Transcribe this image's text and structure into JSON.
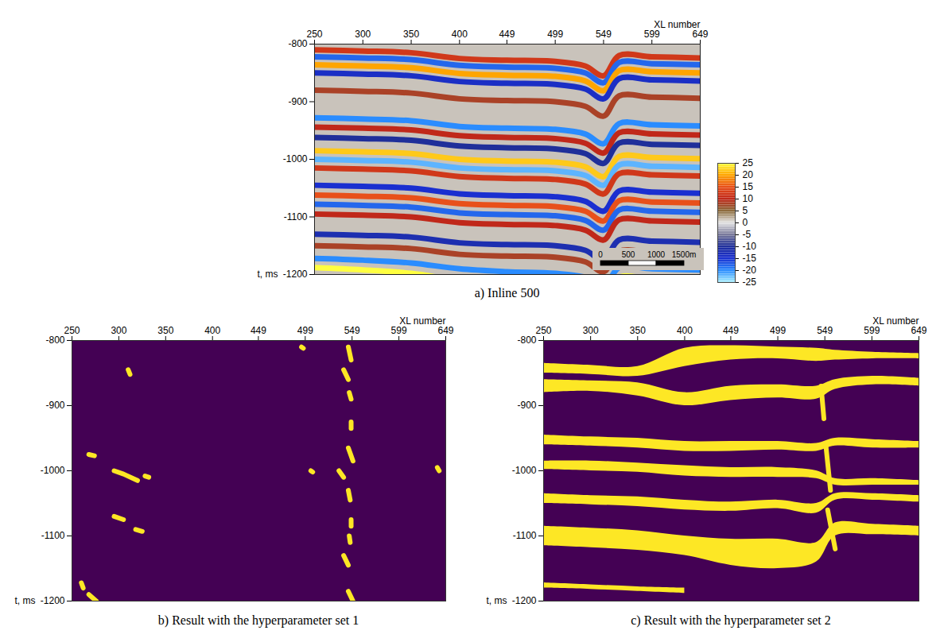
{
  "chart_data": [
    {
      "type": "heatmap",
      "title": "a) Inline 500",
      "x_label": "XL number",
      "y_label": "t, ms",
      "xlim": [
        250,
        649
      ],
      "xticks": [
        250,
        300,
        350,
        400,
        449,
        499,
        549,
        599,
        649
      ],
      "ylim": [
        -1200,
        -800
      ],
      "yticks": [
        -800,
        -900,
        -1000,
        -1100,
        -1200
      ],
      "reflectors": {
        "x": [
          250,
          300,
          350,
          400,
          449,
          499,
          530,
          549,
          565,
          599,
          649
        ],
        "series": [
          {
            "amplitude": 12,
            "t": [
              -810,
              -812,
              -815,
              -825,
              -828,
              -830,
              -838,
              -855,
              -820,
              -822,
              -824
            ]
          },
          {
            "amplitude": -18,
            "t": [
              -822,
              -824,
              -827,
              -837,
              -840,
              -842,
              -850,
              -867,
              -832,
              -834,
              -836
            ]
          },
          {
            "amplitude": 20,
            "t": [
              -836,
              -838,
              -841,
              -851,
              -854,
              -856,
              -864,
              -881,
              -846,
              -848,
              -850
            ]
          },
          {
            "amplitude": -14,
            "t": [
              -850,
              -852,
              -855,
              -865,
              -868,
              -870,
              -878,
              -895,
              -860,
              -862,
              -864
            ]
          },
          {
            "amplitude": 8,
            "t": [
              -880,
              -882,
              -885,
              -895,
              -898,
              -900,
              -908,
              -925,
              -890,
              -892,
              -894
            ]
          },
          {
            "amplitude": -20,
            "t": [
              -928,
              -930,
              -933,
              -943,
              -946,
              -948,
              -956,
              -973,
              -938,
              -940,
              -942
            ]
          },
          {
            "amplitude": 10,
            "t": [
              -944,
              -946,
              -949,
              -959,
              -962,
              -964,
              -972,
              -989,
              -954,
              -956,
              -958
            ]
          },
          {
            "amplitude": -10,
            "t": [
              -962,
              -964,
              -967,
              -977,
              -980,
              -982,
              -990,
              -1007,
              -972,
              -974,
              -976
            ]
          },
          {
            "amplitude": 22,
            "t": [
              -985,
              -987,
              -990,
              -1000,
              -1003,
              -1005,
              -1013,
              -1030,
              -995,
              -997,
              -999
            ]
          },
          {
            "amplitude": -22,
            "t": [
              -1000,
              -1002,
              -1005,
              -1015,
              -1018,
              -1020,
              -1028,
              -1045,
              -1010,
              -1012,
              -1014
            ]
          },
          {
            "amplitude": 12,
            "t": [
              -1015,
              -1017,
              -1020,
              -1030,
              -1033,
              -1035,
              -1043,
              -1060,
              -1025,
              -1027,
              -1029
            ]
          },
          {
            "amplitude": -15,
            "t": [
              -1045,
              -1047,
              -1050,
              -1060,
              -1063,
              -1065,
              -1073,
              -1090,
              -1055,
              -1057,
              -1059
            ]
          },
          {
            "amplitude": 15,
            "t": [
              -1062,
              -1064,
              -1067,
              -1077,
              -1080,
              -1082,
              -1090,
              -1107,
              -1072,
              -1074,
              -1076
            ]
          },
          {
            "amplitude": -18,
            "t": [
              -1078,
              -1080,
              -1083,
              -1093,
              -1096,
              -1098,
              -1106,
              -1123,
              -1088,
              -1090,
              -1092
            ]
          },
          {
            "amplitude": 10,
            "t": [
              -1095,
              -1097,
              -1100,
              -1110,
              -1113,
              -1115,
              -1123,
              -1140,
              -1105,
              -1107,
              -1109
            ]
          },
          {
            "amplitude": -12,
            "t": [
              -1130,
              -1132,
              -1135,
              -1145,
              -1148,
              -1150,
              -1158,
              -1175,
              -1140,
              -1142,
              -1144
            ]
          },
          {
            "amplitude": 8,
            "t": [
              -1150,
              -1152,
              -1155,
              -1165,
              -1168,
              -1170,
              -1178,
              -1195,
              -1160,
              -1162,
              -1164
            ]
          },
          {
            "amplitude": -20,
            "t": [
              -1172,
              -1175,
              -1180,
              -1190,
              -1195,
              -1198,
              -1205,
              -1222,
              -1188,
              -1190,
              -1192
            ]
          },
          {
            "amplitude": 25,
            "t": [
              -1188,
              -1192,
              -1198,
              -1210,
              -1215,
              -1218,
              -1225,
              -1240,
              -1205,
              -1208,
              -1210
            ]
          }
        ]
      },
      "colorbar": {
        "range": [
          -25,
          25
        ],
        "ticks": [
          25,
          20,
          15,
          10,
          5,
          0,
          -5,
          -10,
          -15,
          -20,
          -25
        ]
      },
      "scale_bar": {
        "ticks": [
          0,
          500,
          1000,
          {
            "value": 1500,
            "label": "1500m"
          }
        ]
      }
    },
    {
      "type": "mask",
      "title": "b) Result with the hyperparameter set 1",
      "x_label": "XL number",
      "y_label": "t, ms",
      "xlim": [
        250,
        649
      ],
      "xticks": [
        250,
        300,
        350,
        400,
        449,
        499,
        549,
        599,
        649
      ],
      "ylim": [
        -1200,
        -800
      ],
      "yticks": [
        -800,
        -900,
        -1000,
        -1100,
        -1200
      ],
      "color": "#fde725",
      "blobs": [
        [
          [
            545,
            -810
          ],
          [
            548,
            -830
          ]
        ],
        [
          [
            540,
            -845
          ],
          [
            545,
            -860
          ]
        ],
        [
          [
            546,
            -880
          ],
          [
            548,
            -890
          ]
        ],
        [
          [
            548,
            -925
          ],
          [
            548,
            -935
          ]
        ],
        [
          [
            545,
            -965
          ],
          [
            550,
            -985
          ]
        ],
        [
          [
            535,
            -1000
          ],
          [
            540,
            -1010
          ]
        ],
        [
          [
            545,
            -1030
          ],
          [
            547,
            -1045
          ]
        ],
        [
          [
            548,
            -1075
          ],
          [
            548,
            -1085
          ]
        ],
        [
          [
            546,
            -1100
          ],
          [
            547,
            -1110
          ]
        ],
        [
          [
            540,
            -1130
          ],
          [
            545,
            -1145
          ]
        ],
        [
          [
            545,
            -1185
          ],
          [
            550,
            -1200
          ]
        ],
        [
          [
            310,
            -845
          ],
          [
            312,
            -852
          ]
        ],
        [
          [
            268,
            -975
          ],
          [
            274,
            -977
          ]
        ],
        [
          [
            295,
            -1000
          ],
          [
            305,
            -1005
          ],
          [
            320,
            -1015
          ]
        ],
        [
          [
            328,
            -1008
          ],
          [
            332,
            -1010
          ]
        ],
        [
          [
            295,
            -1070
          ],
          [
            305,
            -1075
          ]
        ],
        [
          [
            318,
            -1090
          ],
          [
            325,
            -1093
          ]
        ],
        [
          [
            260,
            -1172
          ],
          [
            262,
            -1180
          ]
        ],
        [
          [
            268,
            -1190
          ],
          [
            276,
            -1200
          ]
        ],
        [
          [
            505,
            -1000
          ],
          [
            507,
            -1002
          ]
        ],
        [
          [
            495,
            -810
          ],
          [
            497,
            -812
          ]
        ],
        [
          [
            640,
            -995
          ],
          [
            642,
            -1000
          ]
        ]
      ]
    },
    {
      "type": "mask",
      "title": "c) Result with the hyperparameter set 2",
      "x_label": "XL number",
      "y_label": "t, ms",
      "xlim": [
        250,
        649
      ],
      "xticks": [
        250,
        300,
        350,
        400,
        449,
        499,
        549,
        599,
        649
      ],
      "ylim": [
        -1200,
        -800
      ],
      "yticks": [
        -800,
        -900,
        -1000,
        -1100,
        -1200
      ],
      "color": "#fde725",
      "bands": [
        {
          "xl": [
            250,
            300,
            350,
            400,
            449,
            499,
            540,
            560,
            600,
            649
          ],
          "t_top": [
            -835,
            -838,
            -840,
            -812,
            -808,
            -810,
            -812,
            -815,
            -818,
            -820
          ],
          "t_bottom": [
            -850,
            -852,
            -855,
            -840,
            -830,
            -828,
            -832,
            -830,
            -828,
            -828
          ]
        },
        {
          "xl": [
            250,
            300,
            350,
            400,
            449,
            499,
            540,
            560,
            600,
            649
          ],
          "t_top": [
            -860,
            -862,
            -865,
            -880,
            -870,
            -868,
            -870,
            -860,
            -855,
            -858
          ],
          "t_bottom": [
            -880,
            -878,
            -885,
            -900,
            -892,
            -888,
            -890,
            -875,
            -868,
            -870
          ]
        },
        {
          "xl": [
            250,
            300,
            350,
            400,
            449,
            499,
            540,
            560,
            600,
            649
          ],
          "t_top": [
            -945,
            -948,
            -950,
            -955,
            -955,
            -955,
            -958,
            -950,
            -952,
            -955
          ],
          "t_bottom": [
            -960,
            -962,
            -965,
            -970,
            -970,
            -968,
            -970,
            -962,
            -965,
            -965
          ]
        },
        {
          "xl": [
            250,
            300,
            350,
            400,
            449,
            499,
            540,
            560,
            600,
            649
          ],
          "t_top": [
            -985,
            -985,
            -988,
            -992,
            -995,
            -995,
            -1000,
            -1012,
            -1012,
            -1015
          ],
          "t_bottom": [
            -998,
            -1000,
            -1002,
            -1008,
            -1010,
            -1010,
            -1012,
            -1022,
            -1022,
            -1022
          ]
        },
        {
          "xl": [
            250,
            300,
            350,
            400,
            449,
            499,
            540,
            560,
            600,
            649
          ],
          "t_top": [
            -1035,
            -1038,
            -1040,
            -1045,
            -1048,
            -1045,
            -1050,
            -1035,
            -1035,
            -1038
          ],
          "t_bottom": [
            -1050,
            -1052,
            -1055,
            -1060,
            -1062,
            -1058,
            -1065,
            -1045,
            -1045,
            -1048
          ]
        },
        {
          "xl": [
            250,
            300,
            350,
            400,
            449,
            499,
            540,
            560,
            600,
            649
          ],
          "t_top": [
            -1085,
            -1088,
            -1092,
            -1100,
            -1105,
            -1105,
            -1110,
            -1080,
            -1082,
            -1085
          ],
          "t_bottom": [
            -1115,
            -1118,
            -1122,
            -1130,
            -1145,
            -1150,
            -1140,
            -1100,
            -1098,
            -1100
          ]
        },
        {
          "xl": [
            250,
            300,
            350,
            400
          ],
          "t_top": [
            -1172,
            -1175,
            -1178,
            -1180
          ],
          "t_bottom": [
            -1180,
            -1182,
            -1185,
            -1188
          ]
        }
      ],
      "blobs": [
        [
          [
            545,
            -870
          ],
          [
            548,
            -920
          ]
        ],
        [
          [
            550,
            -960
          ],
          [
            555,
            -1030
          ]
        ],
        [
          [
            552,
            -1060
          ],
          [
            560,
            -1120
          ]
        ]
      ]
    }
  ]
}
